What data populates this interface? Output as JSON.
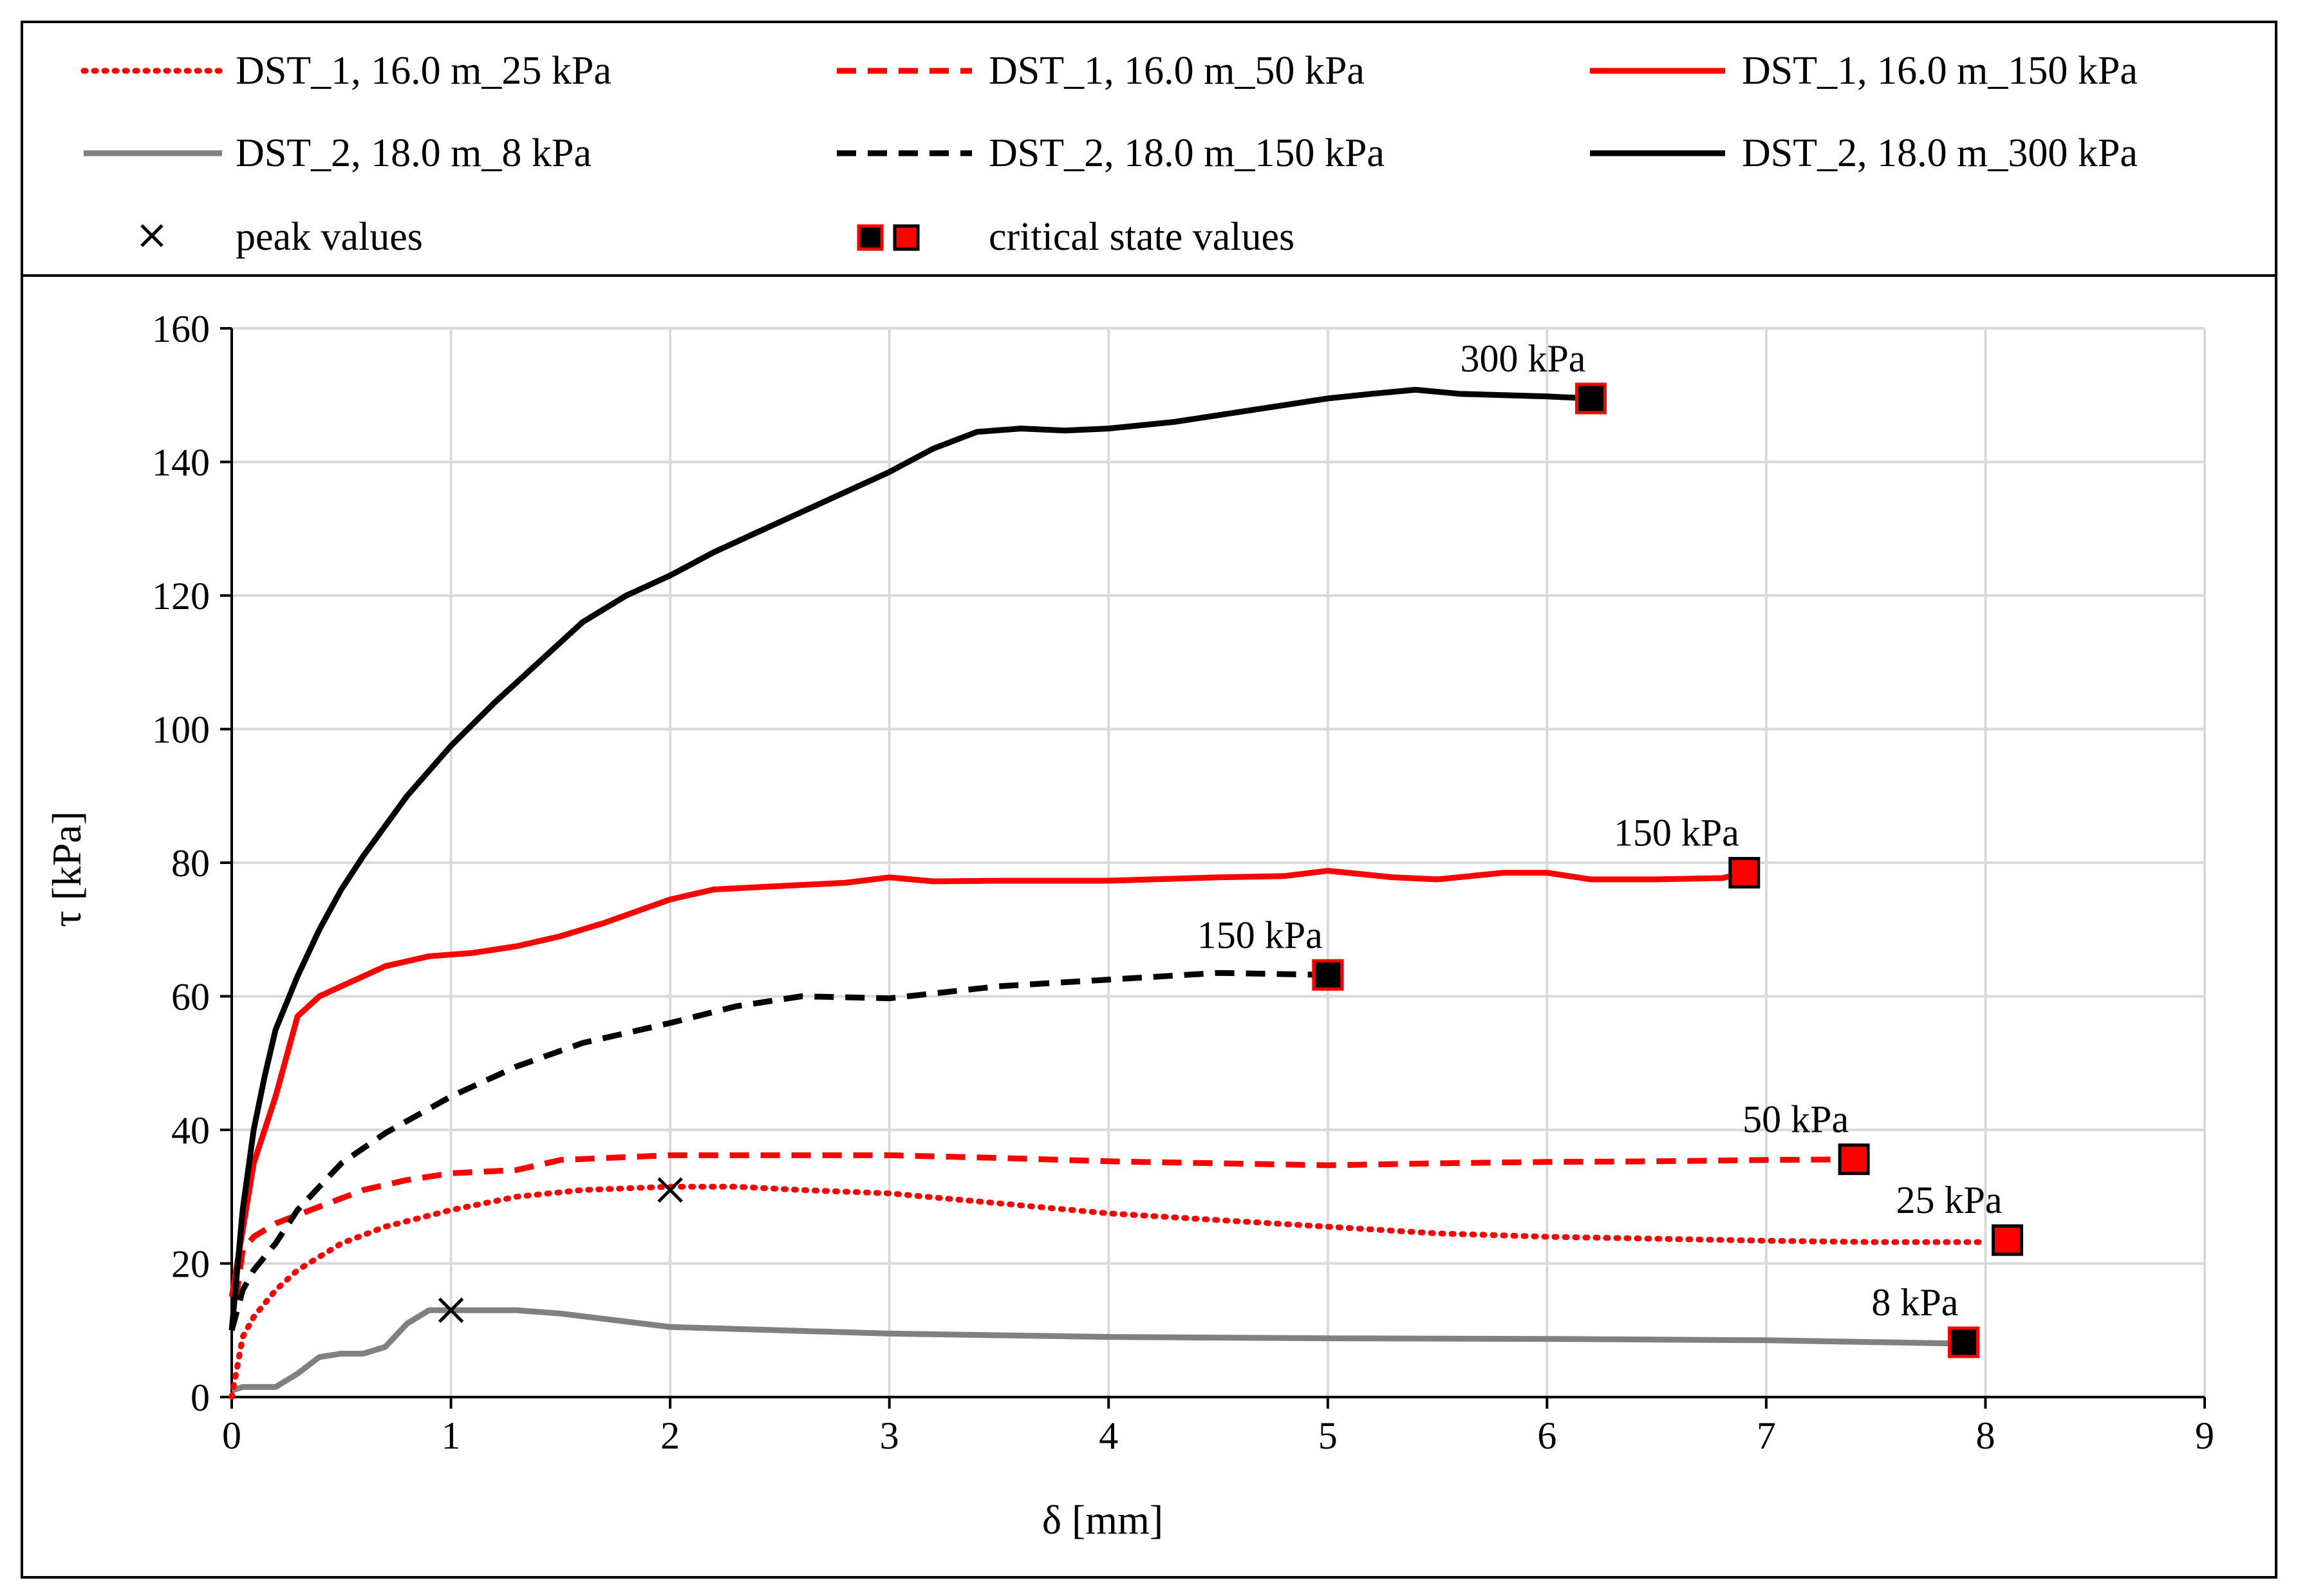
{
  "chart_data": {
    "type": "line",
    "xlabel": "δ [mm]",
    "ylabel": "τ [kPa]",
    "xlim": [
      0,
      9
    ],
    "ylim": [
      0,
      160
    ],
    "x_ticks": [
      0,
      1,
      2,
      3,
      4,
      5,
      6,
      7,
      8,
      9
    ],
    "y_ticks": [
      0,
      20,
      40,
      60,
      80,
      100,
      120,
      140,
      160
    ],
    "grid": true,
    "legend_position": "top",
    "series": [
      {
        "name": "DST_1, 16.0 m_25 kPa",
        "color": "#ff0000",
        "style": "dotted",
        "x": [
          0,
          0.05,
          0.1,
          0.2,
          0.3,
          0.4,
          0.5,
          0.7,
          1.0,
          1.3,
          1.6,
          2.0,
          2.3,
          2.6,
          3.0,
          3.5,
          4.0,
          4.5,
          5.0,
          5.5,
          6.0,
          6.5,
          7.0,
          7.5,
          8.0
        ],
        "y": [
          0,
          9,
          12,
          16,
          19,
          21,
          23,
          25.5,
          28,
          30,
          31,
          31.5,
          31.5,
          31,
          30.5,
          29,
          27.5,
          26.5,
          25.5,
          24.5,
          24,
          23.7,
          23.4,
          23.2,
          23.2
        ]
      },
      {
        "name": "DST_1, 16.0 m_50  kPa",
        "color": "#ff0000",
        "style": "dashed",
        "x": [
          0,
          0.05,
          0.1,
          0.2,
          0.4,
          0.6,
          0.8,
          1.0,
          1.3,
          1.5,
          2.0,
          2.5,
          3.0,
          3.5,
          4.0,
          4.5,
          5.0,
          5.5,
          6.0,
          6.5,
          7.0,
          7.4
        ],
        "y": [
          10,
          22,
          24,
          26,
          28.5,
          31,
          32.5,
          33.5,
          34,
          35.5,
          36.2,
          36.2,
          36.2,
          35.8,
          35.3,
          35,
          34.7,
          35,
          35.2,
          35.3,
          35.5,
          35.6
        ]
      },
      {
        "name": "DST_1, 16.0 m_150 kPa",
        "color": "#ff0000",
        "style": "solid",
        "x": [
          0,
          0.05,
          0.1,
          0.2,
          0.3,
          0.4,
          0.5,
          0.7,
          0.9,
          1.1,
          1.3,
          1.5,
          1.7,
          2.0,
          2.2,
          2.5,
          2.8,
          3.0,
          3.2,
          3.5,
          4.0,
          4.5,
          4.8,
          5.0,
          5.3,
          5.5,
          5.8,
          6.0,
          6.2,
          6.5,
          6.8,
          6.9
        ],
        "y": [
          15,
          25,
          35,
          45,
          57,
          60,
          61.5,
          64.5,
          66,
          66.5,
          67.5,
          69,
          71,
          74.5,
          76,
          76.5,
          77,
          77.8,
          77.2,
          77.3,
          77.3,
          77.8,
          78,
          78.8,
          77.8,
          77.5,
          78.5,
          78.5,
          77.5,
          77.5,
          77.7,
          78.5
        ]
      },
      {
        "name": "DST_2, 18.0 m_8 kPa",
        "color": "#808080",
        "style": "solid",
        "x": [
          0,
          0.05,
          0.2,
          0.3,
          0.4,
          0.5,
          0.6,
          0.7,
          0.8,
          0.9,
          1.0,
          1.3,
          1.5,
          2.0,
          2.5,
          3.0,
          4.0,
          5.0,
          6.0,
          7.0,
          7.9
        ],
        "y": [
          1,
          1.5,
          1.5,
          3.5,
          6,
          6.5,
          6.5,
          7.5,
          11,
          13,
          13,
          13,
          12.5,
          10.5,
          10,
          9.5,
          9,
          8.8,
          8.7,
          8.5,
          8
        ]
      },
      {
        "name": "DST_2, 18.0 m_150 kPa",
        "color": "#000000",
        "style": "dashed",
        "x": [
          0,
          0.05,
          0.1,
          0.2,
          0.3,
          0.5,
          0.7,
          1.0,
          1.3,
          1.6,
          2.0,
          2.3,
          2.6,
          3.0,
          3.5,
          4.0,
          4.5,
          5.0
        ],
        "y": [
          10,
          16,
          19,
          23,
          28,
          35,
          39.5,
          45,
          49.5,
          53,
          56,
          58.5,
          60,
          59.7,
          61.5,
          62.5,
          63.5,
          63.2
        ]
      },
      {
        "name": "DST_2, 18.0 m_300 kPa",
        "color": "#000000",
        "style": "solid",
        "x": [
          0,
          0.05,
          0.1,
          0.15,
          0.2,
          0.3,
          0.4,
          0.5,
          0.6,
          0.8,
          1.0,
          1.2,
          1.4,
          1.6,
          1.8,
          2.0,
          2.2,
          2.4,
          2.6,
          2.8,
          3.0,
          3.2,
          3.4,
          3.6,
          3.8,
          4.0,
          4.3,
          4.5,
          4.8,
          5.0,
          5.2,
          5.4,
          5.6,
          5.8,
          6.0,
          6.2
        ],
        "y": [
          10,
          28,
          40,
          48,
          55,
          63,
          70,
          76,
          81,
          90,
          97.5,
          104,
          110,
          116,
          120,
          123,
          126.5,
          129.5,
          132.5,
          135.5,
          138.5,
          142,
          144.5,
          145,
          144.7,
          145,
          146,
          147,
          148.5,
          149.5,
          150.2,
          150.8,
          150.2,
          150,
          149.8,
          149.5
        ]
      }
    ],
    "peak_values": {
      "label": "peak values",
      "points": [
        {
          "x": 1.0,
          "y": 13
        },
        {
          "x": 2.0,
          "y": 31
        }
      ]
    },
    "critical_state_values": {
      "label": "critical state values",
      "points": [
        {
          "x": 6.2,
          "y": 149.5,
          "fill": "#000000",
          "label": "300 kPa"
        },
        {
          "x": 6.9,
          "y": 78.5,
          "fill": "#ff0000",
          "label": "150 kPa"
        },
        {
          "x": 5.0,
          "y": 63.2,
          "fill": "#000000",
          "label": "150 kPa"
        },
        {
          "x": 7.4,
          "y": 35.6,
          "fill": "#ff0000",
          "label": "50 kPa"
        },
        {
          "x": 8.1,
          "y": 23.5,
          "fill": "#ff0000",
          "label": "25 kPa"
        },
        {
          "x": 7.9,
          "y": 8.2,
          "fill": "#000000",
          "label": "8 kPa"
        }
      ]
    }
  }
}
